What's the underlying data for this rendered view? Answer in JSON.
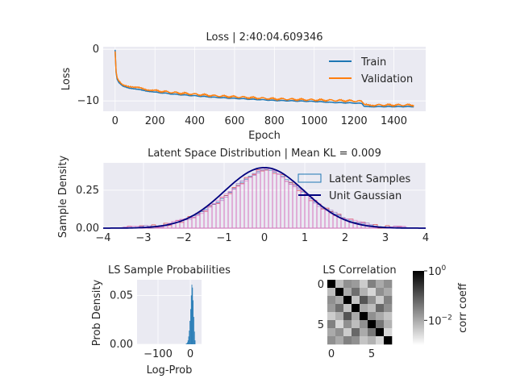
{
  "chart_data": [
    {
      "type": "line",
      "title": "Loss | 2:40:04.609346",
      "xlabel": "Epoch",
      "ylabel": "Loss",
      "xlim": [
        -60,
        1560
      ],
      "ylim": [
        -12,
        0.5
      ],
      "xticks": [
        0,
        200,
        400,
        600,
        800,
        1000,
        1200,
        1400
      ],
      "yticks": [
        0,
        -10
      ],
      "grid": true,
      "legend_position": "upper-right",
      "series": [
        {
          "name": "Train",
          "color": "#1f77b4",
          "x": [
            0,
            5,
            10,
            20,
            40,
            70,
            100,
            150,
            200,
            300,
            400,
            500,
            600,
            700,
            800,
            900,
            1000,
            1100,
            1200,
            1240,
            1250,
            1300,
            1400,
            1500
          ],
          "y": [
            -0.1,
            -4.5,
            -5.8,
            -6.5,
            -7.1,
            -7.5,
            -7.7,
            -8.0,
            -8.3,
            -8.7,
            -9.0,
            -9.3,
            -9.5,
            -9.7,
            -9.9,
            -10.0,
            -10.1,
            -10.3,
            -10.4,
            -10.5,
            -11.1,
            -11.1,
            -11.1,
            -11.1
          ]
        },
        {
          "name": "Validation",
          "color": "#ff7f0e",
          "x": [
            0,
            5,
            10,
            20,
            40,
            70,
            100,
            150,
            200,
            300,
            400,
            500,
            600,
            700,
            800,
            900,
            1000,
            1100,
            1200,
            1240,
            1250,
            1300,
            1400,
            1500
          ],
          "y": [
            -0.4,
            -4.3,
            -5.5,
            -6.2,
            -6.8,
            -7.2,
            -7.4,
            -7.7,
            -8.0,
            -8.4,
            -8.7,
            -9.0,
            -9.2,
            -9.4,
            -9.6,
            -9.7,
            -9.8,
            -9.9,
            -10.0,
            -10.1,
            -10.8,
            -10.8,
            -10.8,
            -10.8
          ]
        }
      ]
    },
    {
      "type": "bar",
      "subtype": "histogram-with-density-line",
      "title": "Latent Space Distribution | Mean KL = 0.009",
      "xlabel": "",
      "ylabel": "Sample Density",
      "xlim": [
        -4,
        4
      ],
      "ylim": [
        0,
        0.43
      ],
      "xticks": [
        -4,
        -3,
        -2,
        -1,
        0,
        1,
        2,
        3,
        4
      ],
      "yticks": [
        0.0,
        0.25
      ],
      "grid": true,
      "legend_position": "upper-right",
      "series": [
        {
          "name": "Latent Samples",
          "color": "#1f77b4",
          "bin_width": 0.1,
          "bin_starts": [
            -3.5,
            -3.4,
            -3.3,
            -3.2,
            -3.1,
            -3.0,
            -2.9,
            -2.8,
            -2.7,
            -2.6,
            -2.5,
            -2.4,
            -2.3,
            -2.2,
            -2.1,
            -2.0,
            -1.9,
            -1.8,
            -1.7,
            -1.6,
            -1.5,
            -1.4,
            -1.3,
            -1.2,
            -1.1,
            -1.0,
            -0.9,
            -0.8,
            -0.7,
            -0.6,
            -0.5,
            -0.4,
            -0.3,
            -0.2,
            -0.1,
            0.0,
            0.1,
            0.2,
            0.3,
            0.4,
            0.5,
            0.6,
            0.7,
            0.8,
            0.9,
            1.0,
            1.1,
            1.2,
            1.3,
            1.4,
            1.5,
            1.6,
            1.7,
            1.8,
            1.9,
            2.0,
            2.1,
            2.2,
            2.3,
            2.4,
            2.5,
            2.6,
            2.7,
            2.8,
            2.9,
            3.0,
            3.1,
            3.2,
            3.3,
            3.4
          ],
          "values": [
            0.001,
            0.002,
            0.002,
            0.003,
            0.004,
            0.006,
            0.008,
            0.01,
            0.013,
            0.017,
            0.021,
            0.027,
            0.033,
            0.04,
            0.049,
            0.058,
            0.069,
            0.081,
            0.094,
            0.108,
            0.123,
            0.139,
            0.156,
            0.173,
            0.193,
            0.215,
            0.238,
            0.257,
            0.283,
            0.302,
            0.322,
            0.342,
            0.36,
            0.372,
            0.384,
            0.386,
            0.381,
            0.37,
            0.356,
            0.342,
            0.32,
            0.3,
            0.28,
            0.259,
            0.238,
            0.216,
            0.193,
            0.174,
            0.155,
            0.138,
            0.123,
            0.108,
            0.093,
            0.081,
            0.069,
            0.058,
            0.048,
            0.04,
            0.033,
            0.027,
            0.022,
            0.017,
            0.013,
            0.01,
            0.008,
            0.006,
            0.004,
            0.003,
            0.002,
            0.002
          ]
        },
        {
          "name": "Unit Gaussian",
          "color": "#00007f",
          "kind": "line",
          "function": "standard normal pdf"
        }
      ]
    },
    {
      "type": "bar",
      "subtype": "histogram",
      "title": "LS Sample Probabilities",
      "xlabel": "Log-Prob",
      "ylabel": "Prob Density",
      "xlim": [
        -165,
        35
      ],
      "ylim": [
        0,
        0.066
      ],
      "xticks": [
        -100,
        0
      ],
      "yticks": [
        0.0,
        0.05
      ],
      "grid": true,
      "series": [
        {
          "name": "",
          "color": "#1f77b4",
          "bin_width": 2,
          "bin_starts": [
            -14,
            -12,
            -10,
            -8,
            -6,
            -4,
            -2,
            0,
            2,
            4,
            6,
            8,
            10,
            12,
            14
          ],
          "values": [
            0.0005,
            0.001,
            0.002,
            0.004,
            0.008,
            0.014,
            0.024,
            0.036,
            0.05,
            0.061,
            0.058,
            0.045,
            0.028,
            0.013,
            0.004
          ]
        }
      ]
    },
    {
      "type": "heatmap",
      "title": "LS Correlation",
      "xlabel": "",
      "ylabel": "",
      "xticks": [
        0,
        5
      ],
      "yticks": [
        0,
        5
      ],
      "grid": false,
      "colormap": "gray_r",
      "norm": "log",
      "colorbar_label": "corr coeff",
      "colorbar_ticks": [
        "10^0",
        "10^-2"
      ],
      "colorbar_range": [
        0.001,
        1
      ],
      "rows": 8,
      "cols": 8,
      "values": [
        [
          1.0,
          0.006,
          0.02,
          0.015,
          0.004,
          0.03,
          0.01,
          0.02
        ],
        [
          0.006,
          1.0,
          0.01,
          0.05,
          0.008,
          0.003,
          0.02,
          0.01
        ],
        [
          0.02,
          0.01,
          1.0,
          0.005,
          0.1,
          0.02,
          0.004,
          0.03
        ],
        [
          0.015,
          0.05,
          0.005,
          1.0,
          0.01,
          0.006,
          0.06,
          0.02
        ],
        [
          0.004,
          0.008,
          0.1,
          0.01,
          1.0,
          0.02,
          0.01,
          0.005
        ],
        [
          0.03,
          0.003,
          0.02,
          0.006,
          0.02,
          1.0,
          0.04,
          0.008
        ],
        [
          0.01,
          0.02,
          0.004,
          0.06,
          0.01,
          0.04,
          1.0,
          0.003
        ],
        [
          0.02,
          0.01,
          0.03,
          0.02,
          0.005,
          0.008,
          0.003,
          1.0
        ]
      ]
    }
  ]
}
